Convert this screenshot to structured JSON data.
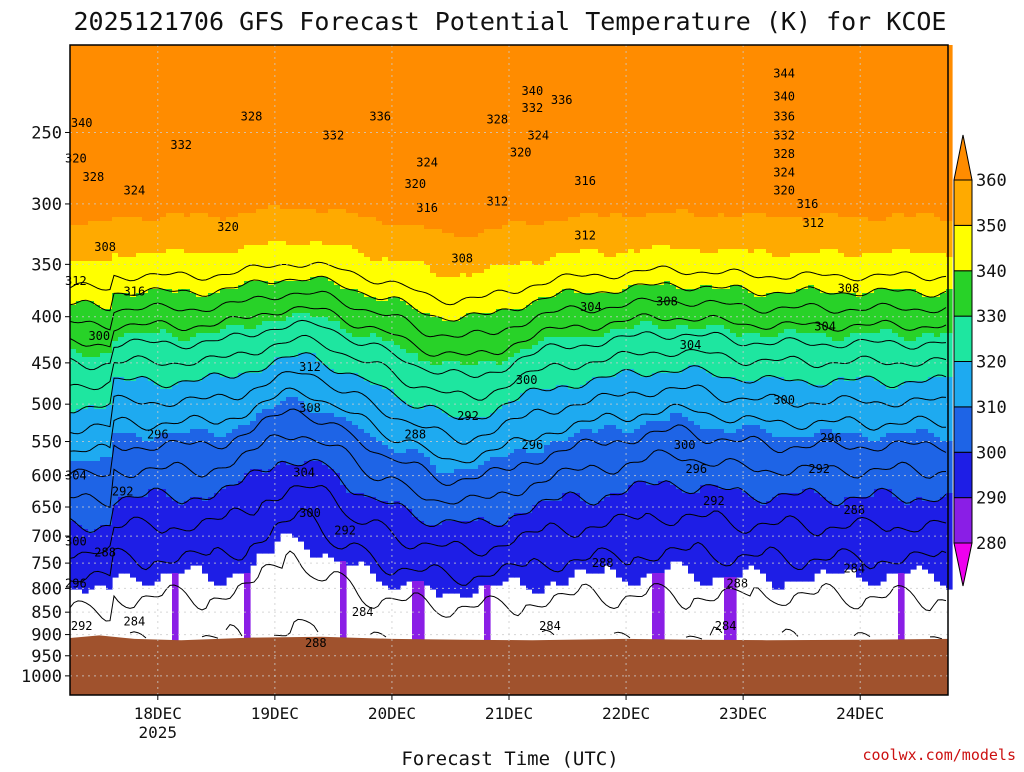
{
  "chart_data": {
    "type": "heatmap",
    "title": "2025121706 GFS Forecast Potential Temperature (K) for KCOE",
    "xlabel": "Forecast Time (UTC)",
    "ylabel": "",
    "credit": "coolwx.com/models",
    "x_ticks": [
      {
        "label": "18DEC",
        "sub": "2025",
        "day": 18
      },
      {
        "label": "19DEC",
        "sub": "",
        "day": 19
      },
      {
        "label": "20DEC",
        "sub": "",
        "day": 20
      },
      {
        "label": "21DEC",
        "sub": "",
        "day": 21
      },
      {
        "label": "22DEC",
        "sub": "",
        "day": 22
      },
      {
        "label": "23DEC",
        "sub": "",
        "day": 23
      },
      {
        "label": "24DEC",
        "sub": "",
        "day": 24
      }
    ],
    "xlim_days": [
      17.25,
      24.75
    ],
    "y_ticks": [
      250,
      300,
      350,
      400,
      450,
      500,
      550,
      600,
      650,
      700,
      750,
      800,
      850,
      900,
      950,
      1000
    ],
    "ylim_hpa": [
      200,
      1050
    ],
    "y_scale": "log",
    "grid": true,
    "colorbar": {
      "levels": [
        280,
        290,
        300,
        310,
        320,
        330,
        340,
        350,
        360
      ],
      "colors": [
        "#ee00ee",
        "#8a1ee6",
        "#1e1ee6",
        "#1e64e6",
        "#1eaaf0",
        "#1ee6a0",
        "#28d228",
        "#ffff00",
        "#ffaa00",
        "#ff8c00"
      ]
    },
    "contour_interval_K": 4,
    "terrain_color": "#a0522d",
    "terrain_surface_hpa": [
      [
        17.25,
        908
      ],
      [
        17.5,
        902
      ],
      [
        17.8,
        910
      ],
      [
        18.2,
        913
      ],
      [
        18.8,
        907
      ],
      [
        19.4,
        905
      ],
      [
        20.0,
        910
      ],
      [
        20.6,
        912
      ],
      [
        21.2,
        913
      ],
      [
        22.0,
        910
      ],
      [
        22.6,
        912
      ],
      [
        23.2,
        913
      ],
      [
        24.0,
        912
      ],
      [
        24.75,
        910
      ]
    ],
    "isentrope_labels": [
      {
        "t": 18.2,
        "p": 258,
        "v": "332"
      },
      {
        "t": 17.35,
        "p": 244,
        "v": "340"
      },
      {
        "t": 17.3,
        "p": 267,
        "v": "320"
      },
      {
        "t": 17.45,
        "p": 280,
        "v": "328"
      },
      {
        "t": 17.8,
        "p": 290,
        "v": "324"
      },
      {
        "t": 18.6,
        "p": 318,
        "v": "320"
      },
      {
        "t": 18.8,
        "p": 240,
        "v": "328"
      },
      {
        "t": 19.5,
        "p": 252,
        "v": "332"
      },
      {
        "t": 19.9,
        "p": 240,
        "v": "336"
      },
      {
        "t": 20.3,
        "p": 270,
        "v": "324"
      },
      {
        "t": 20.2,
        "p": 285,
        "v": "320"
      },
      {
        "t": 20.3,
        "p": 303,
        "v": "316"
      },
      {
        "t": 20.9,
        "p": 298,
        "v": "312"
      },
      {
        "t": 20.6,
        "p": 345,
        "v": "308"
      },
      {
        "t": 21.2,
        "p": 225,
        "v": "340"
      },
      {
        "t": 21.45,
        "p": 230,
        "v": "336"
      },
      {
        "t": 21.2,
        "p": 235,
        "v": "332"
      },
      {
        "t": 20.9,
        "p": 242,
        "v": "328"
      },
      {
        "t": 21.25,
        "p": 252,
        "v": "324"
      },
      {
        "t": 21.1,
        "p": 263,
        "v": "320"
      },
      {
        "t": 21.65,
        "p": 283,
        "v": "316"
      },
      {
        "t": 21.65,
        "p": 325,
        "v": "312"
      },
      {
        "t": 21.7,
        "p": 390,
        "v": "304"
      },
      {
        "t": 22.35,
        "p": 385,
        "v": "308"
      },
      {
        "t": 22.55,
        "p": 430,
        "v": "304"
      },
      {
        "t": 23.35,
        "p": 215,
        "v": "344"
      },
      {
        "t": 23.35,
        "p": 228,
        "v": "340"
      },
      {
        "t": 23.35,
        "p": 240,
        "v": "336"
      },
      {
        "t": 23.35,
        "p": 252,
        "v": "332"
      },
      {
        "t": 23.35,
        "p": 264,
        "v": "328"
      },
      {
        "t": 23.35,
        "p": 277,
        "v": "324"
      },
      {
        "t": 23.35,
        "p": 290,
        "v": "320"
      },
      {
        "t": 23.55,
        "p": 300,
        "v": "316"
      },
      {
        "t": 23.6,
        "p": 315,
        "v": "312"
      },
      {
        "t": 23.9,
        "p": 372,
        "v": "308"
      },
      {
        "t": 23.7,
        "p": 410,
        "v": "304"
      },
      {
        "t": 23.35,
        "p": 495,
        "v": "300"
      },
      {
        "t": 23.75,
        "p": 545,
        "v": "296"
      },
      {
        "t": 23.65,
        "p": 590,
        "v": "292"
      },
      {
        "t": 23.95,
        "p": 655,
        "v": "288"
      },
      {
        "t": 23.95,
        "p": 760,
        "v": "284"
      },
      {
        "t": 17.3,
        "p": 365,
        "v": "312"
      },
      {
        "t": 17.55,
        "p": 335,
        "v": "308"
      },
      {
        "t": 17.8,
        "p": 375,
        "v": "316"
      },
      {
        "t": 17.5,
        "p": 420,
        "v": "300"
      },
      {
        "t": 18.0,
        "p": 540,
        "v": "296"
      },
      {
        "t": 17.3,
        "p": 600,
        "v": "304"
      },
      {
        "t": 17.3,
        "p": 710,
        "v": "300"
      },
      {
        "t": 17.3,
        "p": 790,
        "v": "296"
      },
      {
        "t": 17.35,
        "p": 880,
        "v": "292"
      },
      {
        "t": 17.7,
        "p": 625,
        "v": "292"
      },
      {
        "t": 17.55,
        "p": 730,
        "v": "288"
      },
      {
        "t": 17.8,
        "p": 870,
        "v": "284"
      },
      {
        "t": 19.3,
        "p": 455,
        "v": "312"
      },
      {
        "t": 19.3,
        "p": 505,
        "v": "308"
      },
      {
        "t": 19.25,
        "p": 595,
        "v": "304"
      },
      {
        "t": 19.3,
        "p": 660,
        "v": "300"
      },
      {
        "t": 19.6,
        "p": 690,
        "v": "292"
      },
      {
        "t": 19.75,
        "p": 850,
        "v": "284"
      },
      {
        "t": 19.35,
        "p": 920,
        "v": "288"
      },
      {
        "t": 20.2,
        "p": 540,
        "v": "288"
      },
      {
        "t": 20.65,
        "p": 515,
        "v": "292"
      },
      {
        "t": 21.2,
        "p": 555,
        "v": "296"
      },
      {
        "t": 21.15,
        "p": 470,
        "v": "300"
      },
      {
        "t": 21.35,
        "p": 880,
        "v": "284"
      },
      {
        "t": 21.8,
        "p": 750,
        "v": "288"
      },
      {
        "t": 22.5,
        "p": 555,
        "v": "300"
      },
      {
        "t": 22.6,
        "p": 590,
        "v": "296"
      },
      {
        "t": 22.75,
        "p": 640,
        "v": "292"
      },
      {
        "t": 22.95,
        "p": 790,
        "v": "288"
      },
      {
        "t": 22.85,
        "p": 880,
        "v": "284"
      }
    ]
  },
  "page": {
    "title": "2025121706 GFS Forecast Potential Temperature (K) for KCOE",
    "x_axis_title": "Forecast Time (UTC)",
    "credit": "coolwx.com/models"
  }
}
